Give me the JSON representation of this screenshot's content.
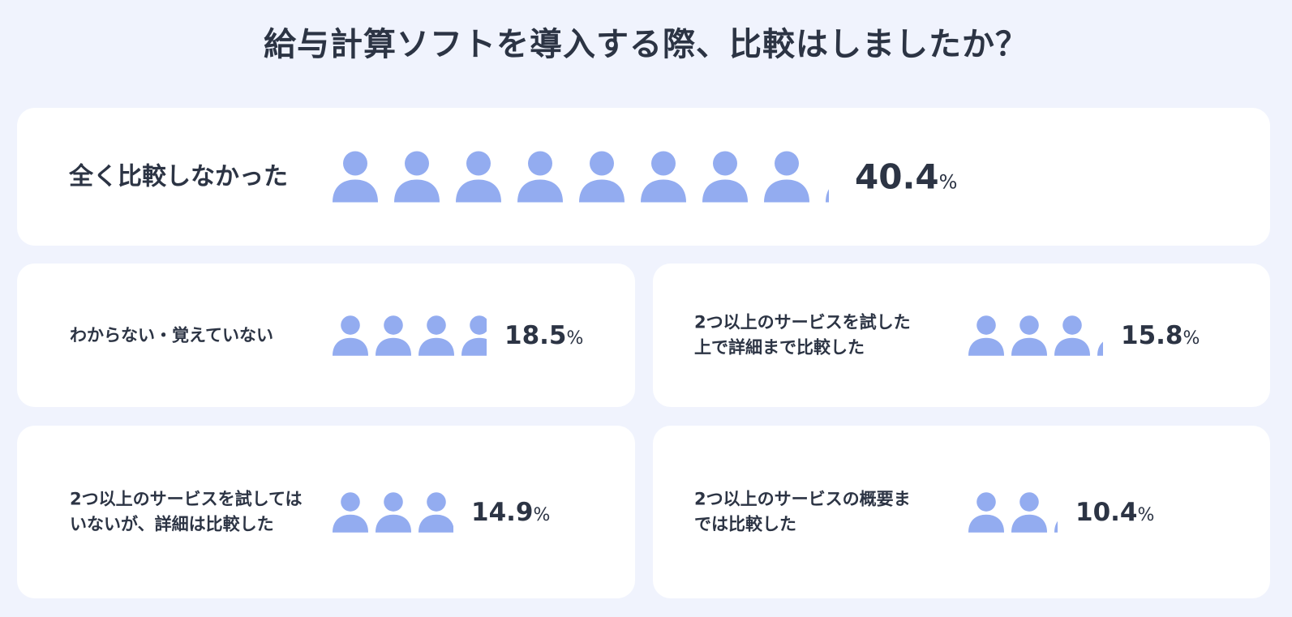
{
  "title": "給与計算ソフトを導入する際、比較はしましたか？",
  "icon": "person-icon",
  "colors": {
    "background": "#f0f3fd",
    "card": "#ffffff",
    "icon": "#93acf0",
    "text": "#2c3444"
  },
  "items": [
    {
      "label": "全く比較しなかった",
      "value": "40.4",
      "unit": "%"
    },
    {
      "label": "わからない・覚えていない",
      "value": "18.5",
      "unit": "%"
    },
    {
      "label": "2つ以上のサービスを試した上で詳細まで比較した",
      "value": "15.8",
      "unit": "%"
    },
    {
      "label": "2つ以上のサービスを試してはいないが、詳細は比較した",
      "value": "14.9",
      "unit": "%"
    },
    {
      "label": "2つ以上のサービスの概要までは比較した",
      "value": "10.4",
      "unit": "%"
    }
  ],
  "chart_data": {
    "type": "bar",
    "title": "給与計算ソフトを導入する際、比較はしましたか？",
    "categories": [
      "全く比較しなかった",
      "わからない・覚えていない",
      "2つ以上のサービスを試した上で詳細まで比較した",
      "2つ以上のサービスを試してはいないが、詳細は比較した",
      "2つ以上のサービスの概要までは比較した"
    ],
    "values": [
      40.4,
      18.5,
      15.8,
      14.9,
      10.4
    ],
    "unit": "%"
  }
}
